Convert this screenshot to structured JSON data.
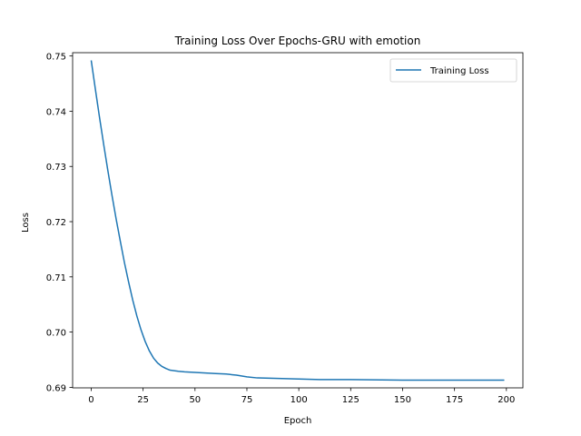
{
  "chart_data": {
    "type": "line",
    "title": "Training Loss Over Epochs-GRU with emotion",
    "xlabel": "Epoch",
    "ylabel": "Loss",
    "xlim": [
      -8.95,
      207.95
    ],
    "ylim": [
      0.6899,
      0.7506
    ],
    "xticks": [
      0,
      25,
      50,
      75,
      100,
      125,
      150,
      175,
      200
    ],
    "xtick_labels": [
      "0",
      "25",
      "50",
      "75",
      "100",
      "125",
      "150",
      "175",
      "200"
    ],
    "yticks": [
      0.69,
      0.7,
      0.71,
      0.72,
      0.73,
      0.74,
      0.75
    ],
    "ytick_labels": [
      "0.69",
      "0.70",
      "0.71",
      "0.72",
      "0.73",
      "0.74",
      "0.75"
    ],
    "grid": false,
    "legend_position": "upper right",
    "colors": {
      "series": "#1f77b4",
      "axes": "#000000",
      "background": "#ffffff"
    },
    "series": [
      {
        "name": "Training Loss",
        "color": "#1f77b4",
        "x": [
          0,
          2,
          4,
          6,
          8,
          10,
          12,
          14,
          16,
          18,
          20,
          22,
          24,
          26,
          28,
          30,
          32,
          34,
          36,
          38,
          40,
          42,
          45,
          50,
          55,
          60,
          65,
          70,
          75,
          80,
          90,
          100,
          110,
          125,
          150,
          175,
          199
        ],
        "y": [
          0.7492,
          0.744,
          0.7389,
          0.734,
          0.7293,
          0.7248,
          0.7205,
          0.7165,
          0.7126,
          0.7091,
          0.7058,
          0.7029,
          0.7004,
          0.6983,
          0.6966,
          0.6953,
          0.6944,
          0.6938,
          0.6934,
          0.6931,
          0.693,
          0.6929,
          0.6928,
          0.6927,
          0.6926,
          0.6925,
          0.6924,
          0.6922,
          0.6919,
          0.6917,
          0.6916,
          0.6915,
          0.6914,
          0.6914,
          0.6913,
          0.6913,
          0.6913
        ]
      }
    ]
  }
}
